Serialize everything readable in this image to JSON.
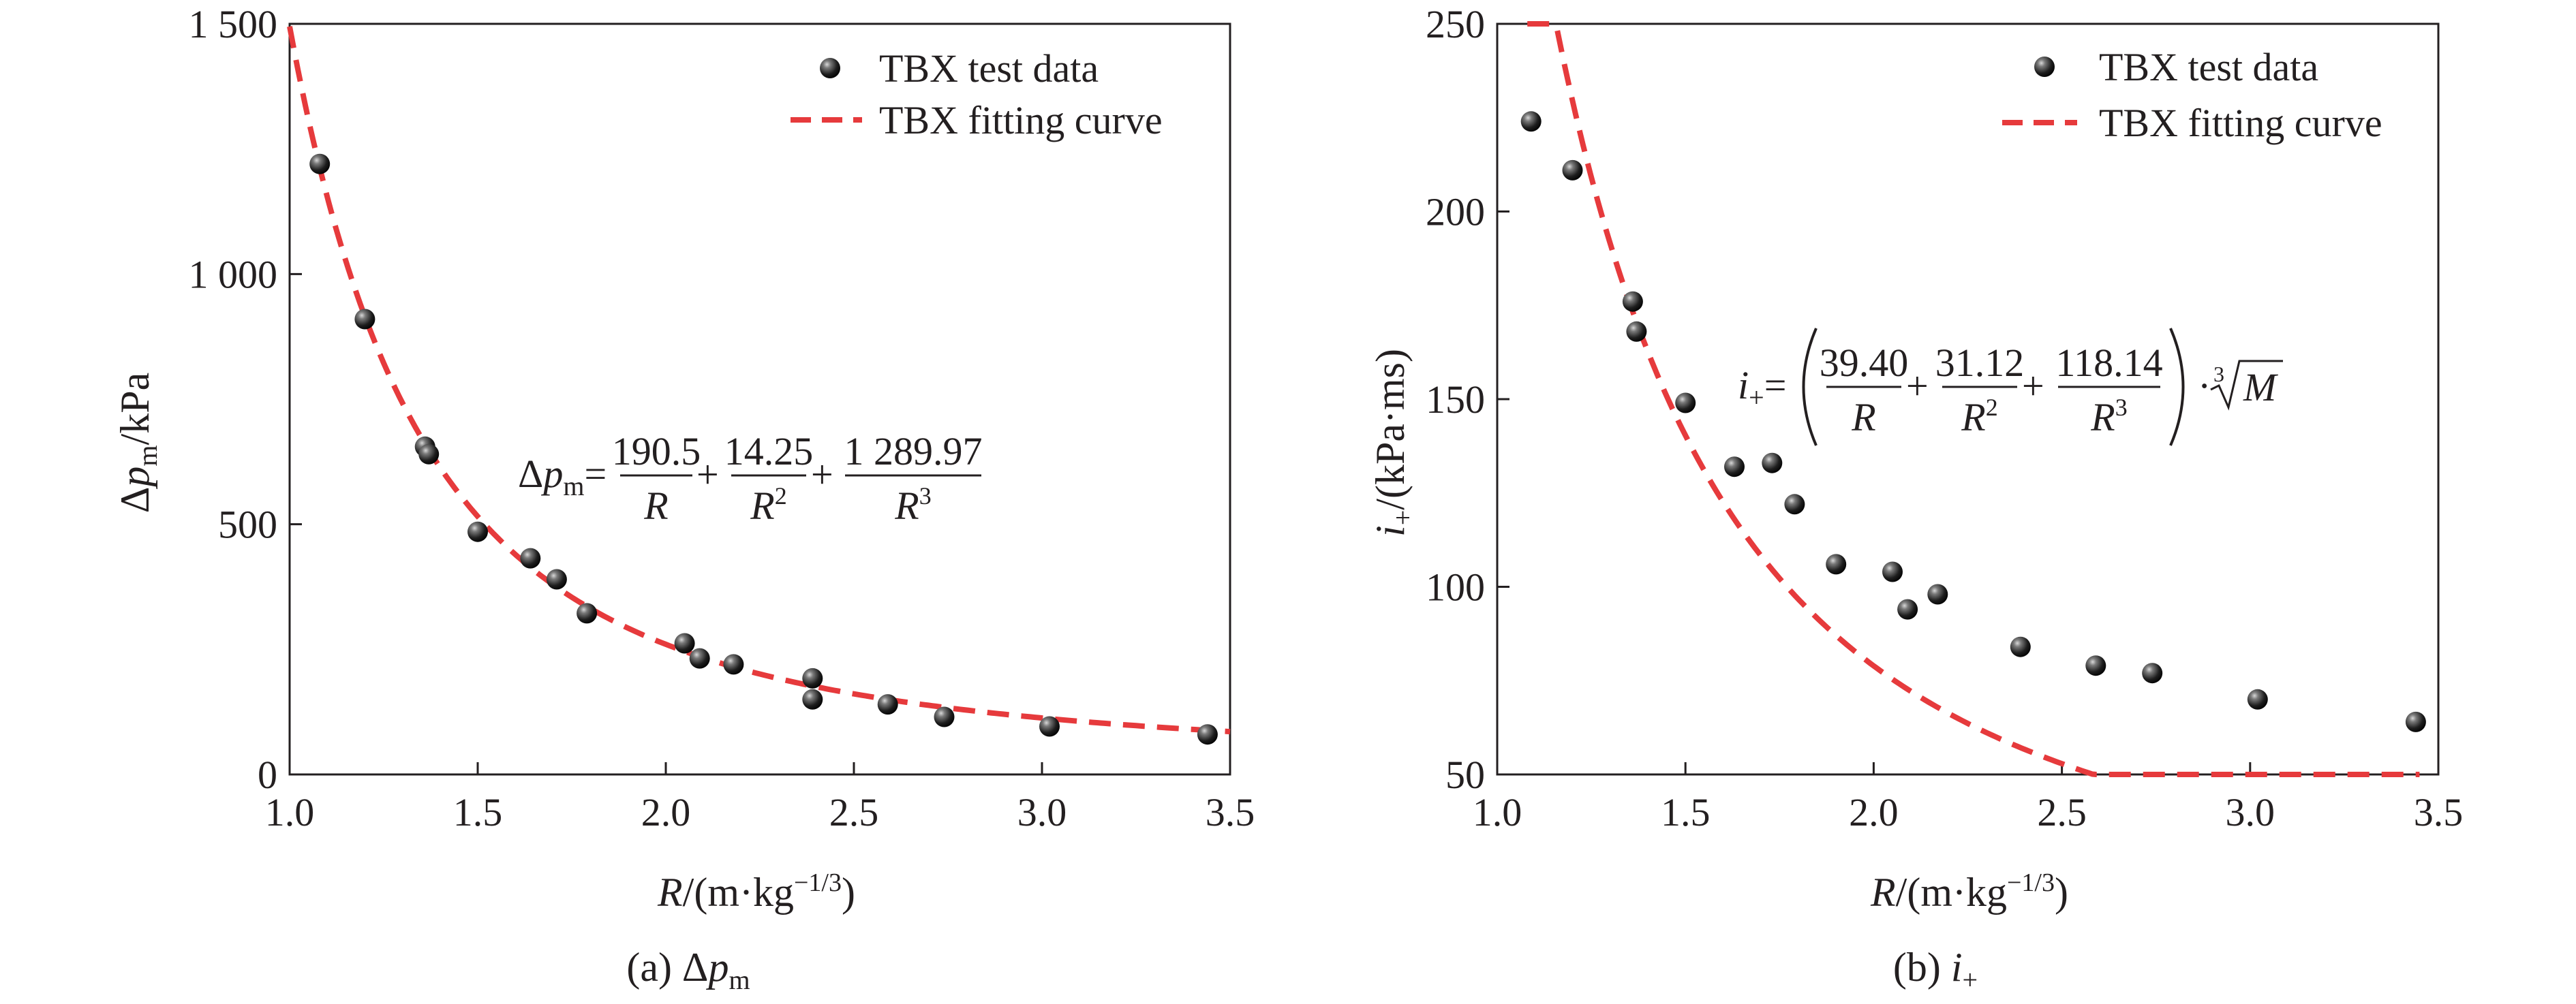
{
  "colors": {
    "axis": "#231f20",
    "curve": "#e63a3c",
    "marker": "#1a1a1a"
  },
  "chart_data": [
    {
      "type": "scatter",
      "panel": "a",
      "caption": {
        "prefix": "(a) Δ",
        "sym": "p",
        "sub": "m"
      },
      "xlabel": {
        "sym": "R",
        "rest": "/(m·kg",
        "sup": "−1/3",
        "close": ")"
      },
      "ylabel": {
        "prefix": "Δ",
        "sym": "p",
        "sub": "m",
        "unit": "/kPa"
      },
      "xlim": [
        1.0,
        3.5
      ],
      "ylim": [
        0,
        1500
      ],
      "xticks": [
        1.0,
        1.5,
        2.0,
        2.5,
        3.0,
        3.5
      ],
      "xtick_labels": [
        "1.0",
        "1.5",
        "2.0",
        "2.5",
        "3.0",
        "3.5"
      ],
      "yticks": [
        0,
        500,
        1000,
        1500
      ],
      "ytick_labels": [
        "0",
        "500",
        "1 000",
        "1 500"
      ],
      "legend_position": "top-right",
      "legend": [
        "TBX test data",
        "TBX fitting curve"
      ],
      "series": [
        {
          "name": "TBX test data",
          "style": "markers",
          "points": [
            [
              1.08,
              1220
            ],
            [
              1.2,
              910
            ],
            [
              1.36,
              655
            ],
            [
              1.37,
              640
            ],
            [
              1.5,
              485
            ],
            [
              1.64,
              432
            ],
            [
              1.71,
              390
            ],
            [
              1.79,
              322
            ],
            [
              2.05,
              262
            ],
            [
              2.09,
              232
            ],
            [
              2.18,
              220
            ],
            [
              2.39,
              192
            ],
            [
              2.39,
              150
            ],
            [
              2.59,
              140
            ],
            [
              2.74,
              115
            ],
            [
              3.02,
              96
            ],
            [
              3.44,
              80
            ]
          ]
        },
        {
          "name": "TBX fitting curve",
          "style": "dashed",
          "formula": "190.5/R + 14.25/R^2 + 1289.97/R^3",
          "coefficients": [
            190.5,
            14.25,
            1289.97
          ],
          "domain": [
            1.0,
            3.5
          ]
        }
      ],
      "equation": {
        "lhs_prefix": "Δ",
        "lhs_sym": "p",
        "lhs_sub": "m",
        "eq": "=",
        "terms": [
          {
            "num": "190.5",
            "den_sym": "R",
            "den_sup": ""
          },
          {
            "num": "14.25",
            "den_sym": "R",
            "den_sup": "2"
          },
          {
            "num": "1 289.97",
            "den_sym": "R",
            "den_sup": "3"
          }
        ],
        "plus": "+"
      }
    },
    {
      "type": "scatter",
      "panel": "b",
      "caption": {
        "prefix": "(b) ",
        "sym": "i",
        "sub": "+"
      },
      "xlabel": {
        "sym": "R",
        "rest": "/(m·kg",
        "sup": "−1/3",
        "close": ")"
      },
      "ylabel": {
        "sym": "i",
        "sub": "+",
        "unit": "/(kPa·ms)"
      },
      "xlim": [
        1.0,
        3.5
      ],
      "ylim": [
        50,
        250
      ],
      "xticks": [
        1.0,
        1.5,
        2.0,
        2.5,
        3.0,
        3.5
      ],
      "xtick_labels": [
        "1.0",
        "1.5",
        "2.0",
        "2.5",
        "3.0",
        "3.5"
      ],
      "yticks": [
        50,
        100,
        150,
        200,
        250
      ],
      "ytick_labels": [
        "50",
        "100",
        "150",
        "200",
        "250"
      ],
      "legend_position": "top-right",
      "legend": [
        "TBX test data",
        "TBX fitting curve"
      ],
      "series": [
        {
          "name": "TBX test data",
          "style": "markers",
          "points": [
            [
              1.09,
              224
            ],
            [
              1.2,
              211
            ],
            [
              1.36,
              176
            ],
            [
              1.37,
              168
            ],
            [
              1.5,
              149
            ],
            [
              1.63,
              132
            ],
            [
              1.73,
              133
            ],
            [
              1.79,
              122
            ],
            [
              1.9,
              106
            ],
            [
              2.05,
              104
            ],
            [
              2.09,
              94
            ],
            [
              2.17,
              98
            ],
            [
              2.39,
              84
            ],
            [
              2.59,
              79
            ],
            [
              2.74,
              77
            ],
            [
              3.02,
              70
            ],
            [
              3.44,
              64
            ]
          ]
        },
        {
          "name": "TBX fitting curve",
          "style": "dashed",
          "formula": "(39.40/R + 31.12/R^2 + 118.14/R^3) * cbrt(M)",
          "coefficients": [
            39.4,
            31.12,
            118.14
          ],
          "domain": [
            1.08,
            3.45
          ]
        }
      ],
      "equation": {
        "lhs_sym": "i",
        "lhs_sub": "+",
        "eq": "=",
        "terms": [
          {
            "num": "39.40",
            "den_sym": "R",
            "den_sup": ""
          },
          {
            "num": "31.12",
            "den_sym": "R",
            "den_sup": "2"
          },
          {
            "num": "118.14",
            "den_sym": "R",
            "den_sup": "3"
          }
        ],
        "plus": "+",
        "dot": "·",
        "root_index": "3",
        "root_sym": "M"
      }
    }
  ]
}
